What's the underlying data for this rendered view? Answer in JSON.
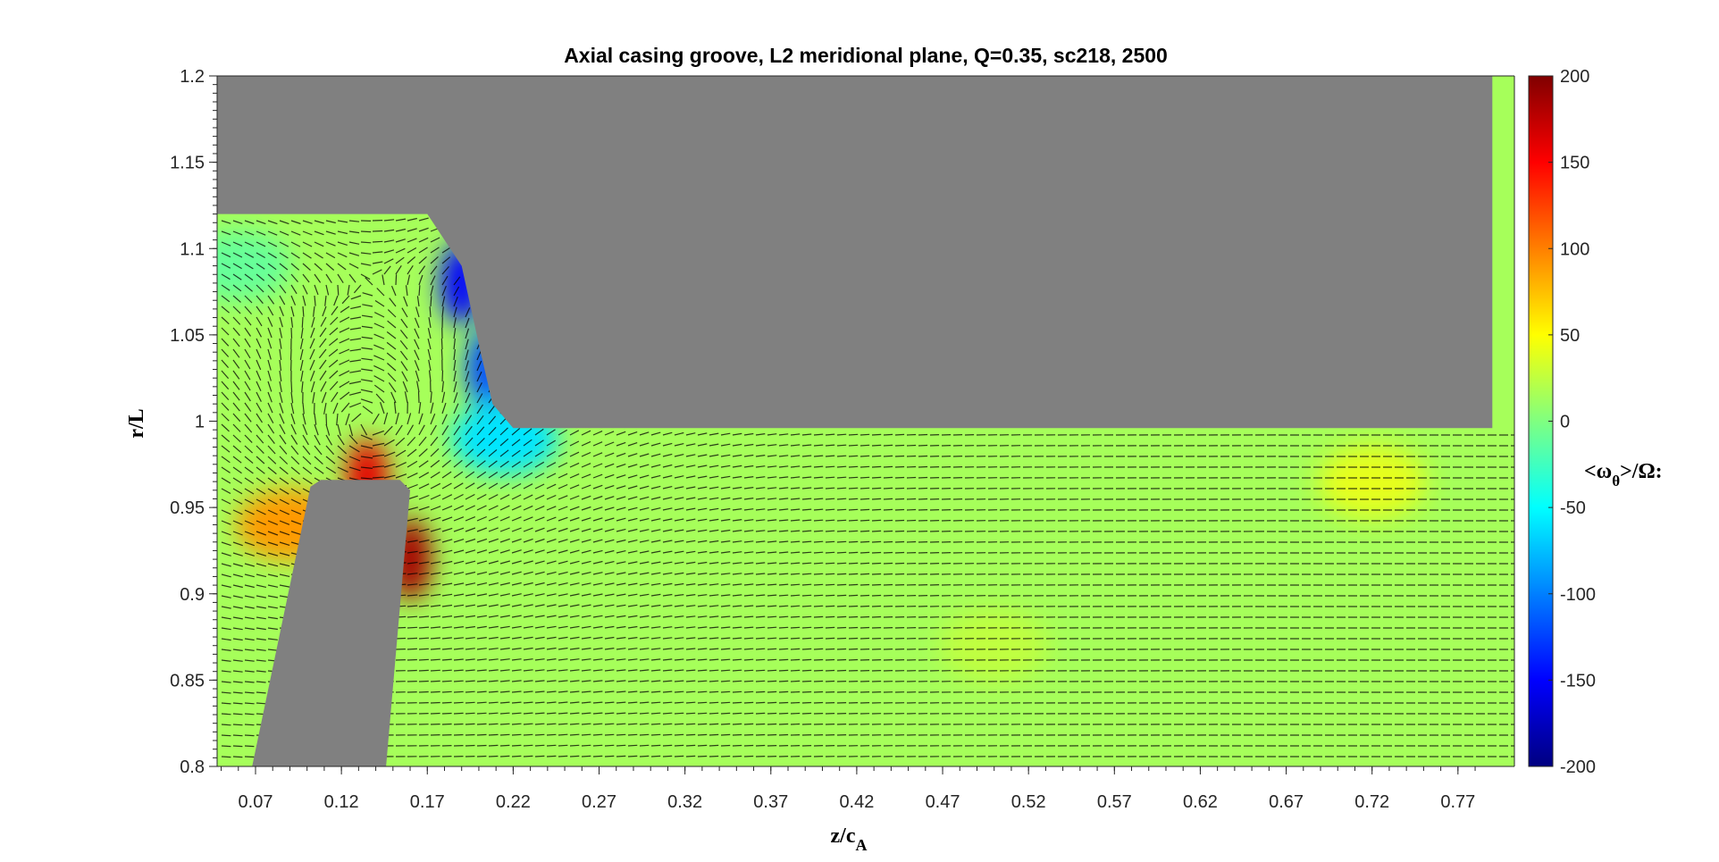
{
  "chart_data": {
    "type": "heatmap",
    "plot_kind": "contour-with-velocity-vectors",
    "title": "Axial casing groove, L2 meridional plane, Q=0.35, sc218, 2500",
    "xlabel": {
      "main": "z/c",
      "sub": "A"
    },
    "ylabel": "r/L",
    "xlim": [
      0.045,
      0.79
    ],
    "ylim": [
      0.8,
      1.2
    ],
    "xticks": [
      0.07,
      0.12,
      0.17,
      0.22,
      0.27,
      0.32,
      0.37,
      0.42,
      0.47,
      0.52,
      0.57,
      0.62,
      0.67,
      0.72,
      0.77
    ],
    "xtick_labels": [
      "0.07",
      "0.12",
      "0.17",
      "0.22",
      "0.27",
      "0.32",
      "0.37",
      "0.42",
      "0.47",
      "0.52",
      "0.57",
      "0.62",
      "0.67",
      "0.72",
      "0.77"
    ],
    "yticks": [
      0.8,
      0.85,
      0.9,
      0.95,
      1.0,
      1.05,
      1.1,
      1.15,
      1.2
    ],
    "ytick_labels": [
      "0.8",
      "0.85",
      "0.9",
      "0.95",
      "1",
      "1.05",
      "1.1",
      "1.15",
      "1.2"
    ],
    "colorbar": {
      "label": {
        "pre": "<ω",
        "sub": "θ",
        "post": ">/Ω:"
      },
      "limits": [
        -200,
        200
      ],
      "ticks": [
        200,
        150,
        100,
        50,
        0,
        -50,
        -100,
        -150,
        -200
      ],
      "tick_labels": [
        "200",
        "150",
        "100",
        "50",
        "0",
        "-50",
        "-100",
        "-150",
        "-200"
      ],
      "colormap": "jet"
    },
    "geometry": {
      "casing_outline_z_r": [
        [
          0.045,
          1.2
        ],
        [
          0.79,
          1.2
        ],
        [
          0.79,
          0.996
        ],
        [
          0.22,
          0.996
        ],
        [
          0.208,
          1.01
        ],
        [
          0.201,
          1.04
        ],
        [
          0.19,
          1.09
        ],
        [
          0.17,
          1.12
        ],
        [
          0.045,
          1.12
        ]
      ],
      "blade_outline_z_r": [
        [
          0.068,
          0.8
        ],
        [
          0.102,
          0.962
        ],
        [
          0.108,
          0.966
        ],
        [
          0.154,
          0.966
        ],
        [
          0.16,
          0.96
        ],
        [
          0.146,
          0.8
        ]
      ],
      "solid_color": "#808080"
    },
    "vorticity_hotspots": [
      {
        "z": 0.16,
        "r": 0.92,
        "value": 185
      },
      {
        "z": 0.135,
        "r": 0.966,
        "value": 160
      },
      {
        "z": 0.09,
        "r": 0.94,
        "value": 90
      },
      {
        "z": 0.19,
        "r": 1.08,
        "value": -150
      },
      {
        "z": 0.205,
        "r": 1.03,
        "value": -120
      },
      {
        "z": 0.215,
        "r": 0.99,
        "value": -60
      },
      {
        "z": 0.06,
        "r": 1.09,
        "value": -10
      },
      {
        "z": 0.72,
        "r": 0.965,
        "value": 40
      },
      {
        "z": 0.5,
        "r": 0.87,
        "value": 25
      }
    ],
    "background_value": 15
  }
}
